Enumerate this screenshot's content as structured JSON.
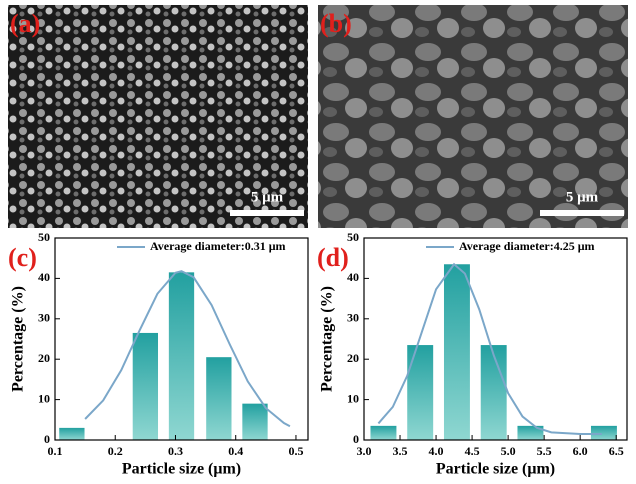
{
  "images": [
    {
      "label": "(a)",
      "scale_bar": "5 μm"
    },
    {
      "label": "(b)",
      "scale_bar": "5 μm"
    }
  ],
  "chart_data": [
    {
      "type": "bar",
      "label": "(c)",
      "xlabel": "Particle size (μm)",
      "ylabel": "Percentage (%)",
      "x": [
        0.128,
        0.25,
        0.31,
        0.372,
        0.432
      ],
      "values": [
        3,
        26.5,
        41.5,
        20.5,
        9
      ],
      "bar_width": 0.042,
      "color": [
        "#22a0a0",
        "#8fd7d1"
      ],
      "xlim": [
        0.1,
        0.52
      ],
      "xticks": [
        0.1,
        0.2,
        0.3,
        0.4,
        0.5
      ],
      "ylim": [
        0,
        50
      ],
      "yticks": [
        0,
        10,
        20,
        30,
        40,
        50
      ],
      "series": [
        {
          "name": "Average diameter:0.31 μm",
          "color": "#7ba7c9",
          "x": [
            0.15,
            0.18,
            0.21,
            0.24,
            0.27,
            0.3,
            0.31,
            0.33,
            0.36,
            0.39,
            0.42,
            0.45,
            0.48,
            0.49
          ],
          "values": [
            5.2,
            9.8,
            17.3,
            27,
            36.2,
            41.4,
            41.8,
            40.3,
            33.4,
            23.7,
            14.5,
            7.9,
            4.2,
            3.4
          ]
        }
      ]
    },
    {
      "type": "bar",
      "label": "(d)",
      "xlabel": "Particle size (μm)",
      "ylabel": "Percentage (%)",
      "x": [
        3.27,
        3.78,
        4.29,
        4.8,
        5.31,
        6.33
      ],
      "values": [
        3.5,
        23.5,
        43.5,
        23.5,
        3.5,
        3.5
      ],
      "bar_width": 0.36,
      "color": [
        "#22a0a0",
        "#8fd7d1"
      ],
      "xlim": [
        3.0,
        6.65
      ],
      "xticks": [
        {
          "value": 3,
          "label": "3.0"
        },
        3.5,
        {
          "value": 4,
          "label": "4.0"
        },
        4.5,
        {
          "value": 5,
          "label": "5.0"
        },
        5.5,
        {
          "value": 6,
          "label": "6.0"
        },
        6.5
      ],
      "ylim": [
        0,
        50
      ],
      "yticks": [
        0,
        10,
        20,
        30,
        40,
        50
      ],
      "series": [
        {
          "name": "Average diameter:4.25 μm",
          "color": "#7ba7c9",
          "x": [
            3.2,
            3.4,
            3.6,
            3.8,
            4.0,
            4.25,
            4.4,
            4.6,
            4.8,
            5.0,
            5.2,
            5.4,
            5.6,
            6.0,
            6.3
          ],
          "values": [
            4.1,
            8.2,
            15.9,
            26.6,
            37.3,
            43.5,
            41.2,
            32.3,
            21,
            11.6,
            5.8,
            3,
            1.9,
            1.5,
            1.5
          ]
        }
      ]
    }
  ]
}
